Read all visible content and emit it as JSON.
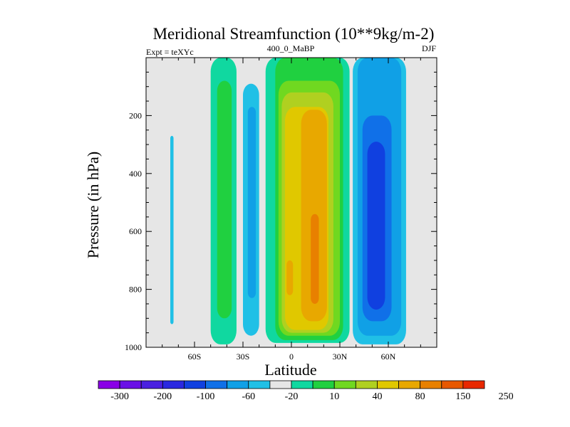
{
  "chart_data": {
    "type": "contour",
    "title": "Meridional Streamfunction (10**9kg/m-2)",
    "left_label": "Expt = teXYc",
    "center_label": "400_0_MaBP",
    "right_label": "DJF",
    "xlabel": "Latitude",
    "ylabel": "Pressure (in hPa)",
    "xlim": [
      -90,
      90
    ],
    "ylim": [
      1000,
      0
    ],
    "y_reversed": true,
    "x_ticks": [
      {
        "value": -60,
        "label": "60S"
      },
      {
        "value": -30,
        "label": "30S"
      },
      {
        "value": 0,
        "label": "0"
      },
      {
        "value": 30,
        "label": "30N"
      },
      {
        "value": 60,
        "label": "60N"
      }
    ],
    "y_ticks": [
      {
        "value": 200,
        "label": "200"
      },
      {
        "value": 400,
        "label": "400"
      },
      {
        "value": 600,
        "label": "600"
      },
      {
        "value": 800,
        "label": "800"
      },
      {
        "value": 1000,
        "label": "1000"
      }
    ],
    "background_color": "#e6e6e6",
    "colorbar": {
      "colors": [
        "#8a00e6",
        "#6a10e6",
        "#4a20e0",
        "#2a28e0",
        "#1040e0",
        "#1070e8",
        "#10a0e6",
        "#20c0e6",
        "#e6e6e6",
        "#10d8a0",
        "#20d040",
        "#70d820",
        "#b0d020",
        "#e0c800",
        "#e8a800",
        "#e88000",
        "#e85800",
        "#e82800"
      ],
      "labels": [
        "-300",
        "-200",
        "-100",
        "-60",
        "-20",
        "10",
        "40",
        "80",
        "150",
        "250"
      ],
      "levels": [
        -300,
        -250,
        -200,
        -150,
        -100,
        -80,
        -60,
        -40,
        -20,
        -10,
        10,
        20,
        40,
        60,
        80,
        100,
        150,
        200,
        250
      ]
    },
    "regions": [
      {
        "value": -10,
        "color": "#20c0e6",
        "lat": [
          -75,
          -73
        ],
        "p": [
          270,
          920
        ]
      },
      {
        "value": 10,
        "color": "#10d8a0",
        "lat": [
          -50,
          -34
        ],
        "p": [
          0,
          990
        ]
      },
      {
        "value": 20,
        "color": "#20d040",
        "lat": [
          -46,
          -37
        ],
        "p": [
          80,
          900
        ]
      },
      {
        "value": -10,
        "color": "#20c0e6",
        "lat": [
          -30,
          -20
        ],
        "p": [
          90,
          960
        ]
      },
      {
        "value": -20,
        "color": "#10a0e6",
        "lat": [
          -27,
          -22
        ],
        "p": [
          170,
          830
        ]
      },
      {
        "value": 10,
        "color": "#10d8a0",
        "lat": [
          -16,
          36
        ],
        "p": [
          0,
          985
        ]
      },
      {
        "value": 20,
        "color": "#20d040",
        "lat": [
          -10,
          32
        ],
        "p": [
          0,
          975
        ]
      },
      {
        "value": 40,
        "color": "#70d820",
        "lat": [
          -8,
          30
        ],
        "p": [
          80,
          960
        ]
      },
      {
        "value": 60,
        "color": "#b0d020",
        "lat": [
          -6,
          26
        ],
        "p": [
          120,
          950
        ]
      },
      {
        "value": 80,
        "color": "#e0c800",
        "lat": [
          -4,
          23
        ],
        "p": [
          170,
          940
        ]
      },
      {
        "value": 100,
        "color": "#e8a800",
        "lat": [
          6,
          22
        ],
        "p": [
          180,
          910
        ]
      },
      {
        "value": 150,
        "color": "#e88000",
        "lat": [
          12,
          17
        ],
        "p": [
          540,
          850
        ]
      },
      {
        "value": 100,
        "color": "#e8a800",
        "lat": [
          -3,
          1
        ],
        "p": [
          700,
          820
        ]
      },
      {
        "value": -10,
        "color": "#20c0e6",
        "lat": [
          38,
          71
        ],
        "p": [
          0,
          990
        ]
      },
      {
        "value": -20,
        "color": "#10a0e6",
        "lat": [
          41,
          68
        ],
        "p": [
          0,
          960
        ]
      },
      {
        "value": -40,
        "color": "#1070e8",
        "lat": [
          44,
          62
        ],
        "p": [
          200,
          910
        ]
      },
      {
        "value": -60,
        "color": "#1040e0",
        "lat": [
          47,
          58
        ],
        "p": [
          290,
          870
        ]
      }
    ]
  }
}
